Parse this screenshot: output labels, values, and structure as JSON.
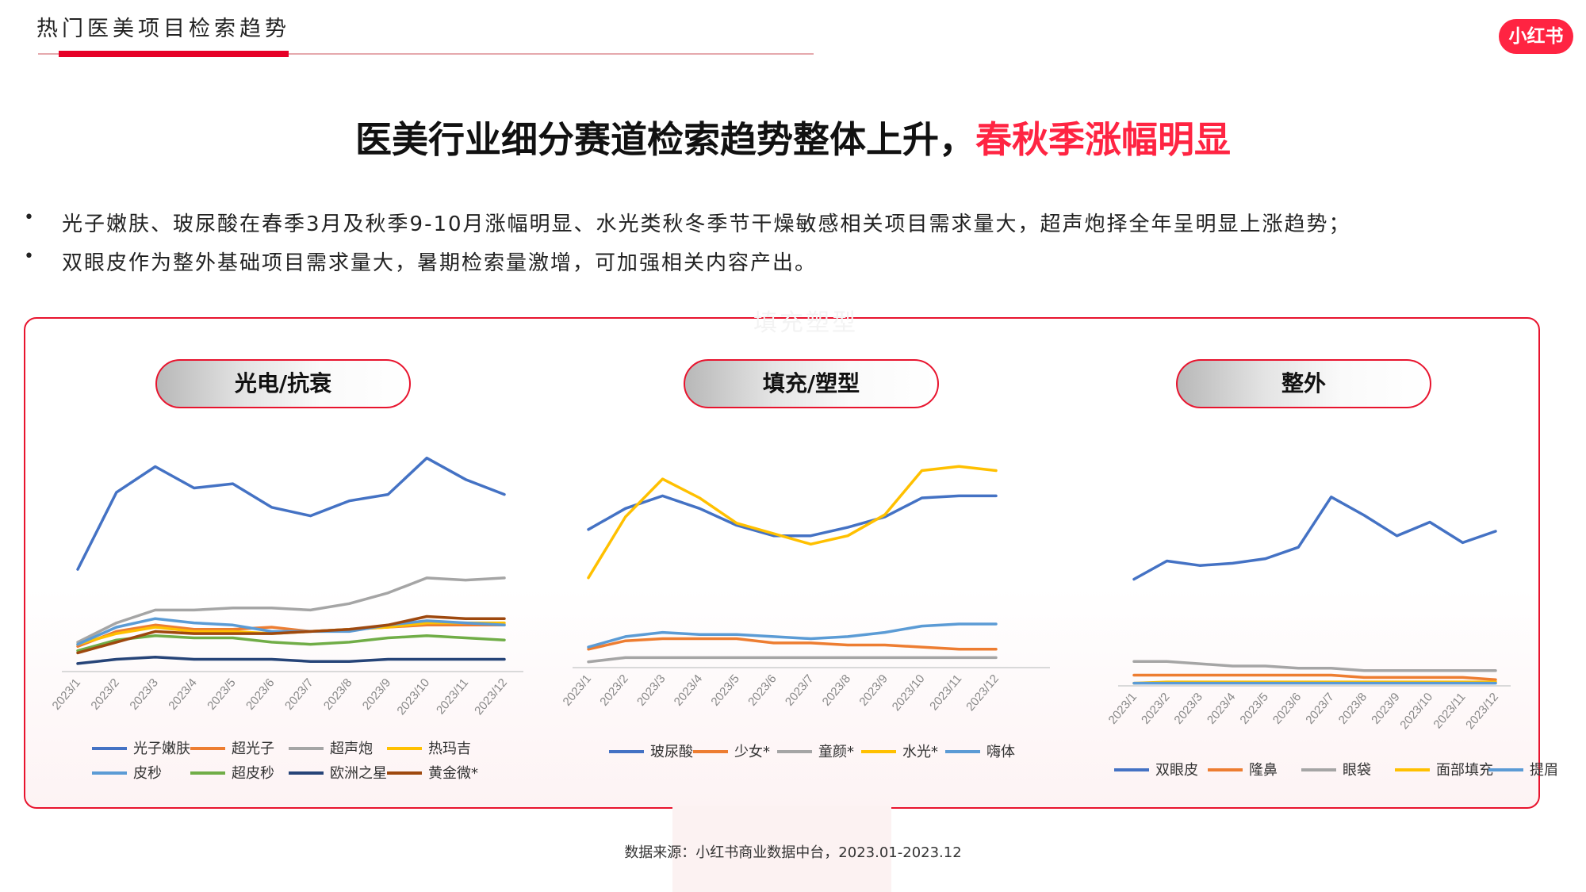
{
  "header": {
    "section_label": "热门医美项目检索趋势",
    "brand": "小红书"
  },
  "headline": {
    "main": "医美行业细分赛道检索趋势整体上升，",
    "highlight": "春秋季涨幅明显"
  },
  "bullets": [
    {
      "mark": "•",
      "text": "光子嫩肤、玻尿酸在春季3月及秋季9-10月涨幅明显、水光类秋冬季节干燥敏感相关项目需求量大，超声炮择全年呈明显上涨趋势；"
    },
    {
      "mark": "•",
      "text": "双眼皮作为整外基础项目需求量大，暑期检索量激增，可加强相关内容产出。"
    }
  ],
  "watermark": "填充塑型",
  "footer": {
    "source": "数据来源：小红书商业数据中台，2023.01-2023.12"
  },
  "colors": {
    "accent": "#ff2442",
    "line": "#e60027"
  },
  "chart_data": [
    {
      "type": "line",
      "title": "光电/抗衰",
      "categories": [
        "2023/1",
        "2023/2",
        "2023/3",
        "2023/4",
        "2023/5",
        "2023/6",
        "2023/7",
        "2023/8",
        "2023/9",
        "2023/10",
        "2023/11",
        "2023/12"
      ],
      "ylim": [
        0,
        100
      ],
      "series": [
        {
          "name": "光子嫩肤",
          "color": "#4472c4",
          "values": [
            47,
            83,
            95,
            85,
            87,
            76,
            72,
            79,
            82,
            99,
            89,
            82
          ]
        },
        {
          "name": "超光子",
          "color": "#ed7d31",
          "values": [
            11,
            18,
            21,
            19,
            19,
            20,
            18,
            19,
            20,
            21,
            21,
            21
          ]
        },
        {
          "name": "超声炮",
          "color": "#a5a5a5",
          "values": [
            13,
            22,
            28,
            28,
            29,
            29,
            28,
            31,
            36,
            43,
            42,
            43
          ]
        },
        {
          "name": "热玛吉",
          "color": "#ffc000",
          "values": [
            12,
            17,
            20,
            18,
            18,
            17,
            18,
            19,
            20,
            22,
            22,
            22
          ]
        },
        {
          "name": "皮秒",
          "color": "#5b9bd5",
          "values": [
            12,
            20,
            24,
            22,
            21,
            18,
            18,
            18,
            21,
            23,
            22,
            21
          ]
        },
        {
          "name": "超皮秒",
          "color": "#70ad47",
          "values": [
            9,
            14,
            16,
            15,
            15,
            13,
            12,
            13,
            15,
            16,
            15,
            14
          ]
        },
        {
          "name": "欧洲之星",
          "color": "#264478",
          "values": [
            3,
            5,
            6,
            5,
            5,
            5,
            4,
            4,
            5,
            5,
            5,
            5
          ]
        },
        {
          "name": "黄金微*",
          "color": "#9e480e",
          "values": [
            8,
            13,
            18,
            17,
            17,
            17,
            18,
            19,
            21,
            25,
            24,
            24
          ]
        }
      ]
    },
    {
      "type": "line",
      "title": "填充/塑型",
      "categories": [
        "2023/1",
        "2023/2",
        "2023/3",
        "2023/4",
        "2023/5",
        "2023/6",
        "2023/7",
        "2023/8",
        "2023/9",
        "2023/10",
        "2023/11",
        "2023/12"
      ],
      "ylim": [
        0,
        100
      ],
      "series": [
        {
          "name": "玻尿酸",
          "color": "#4472c4",
          "values": [
            65,
            75,
            81,
            75,
            67,
            62,
            62,
            66,
            71,
            80,
            81,
            81
          ]
        },
        {
          "name": "少女*",
          "color": "#ed7d31",
          "values": [
            8,
            12,
            13,
            13,
            13,
            11,
            11,
            10,
            10,
            9,
            8,
            8
          ]
        },
        {
          "name": "童颜*",
          "color": "#a5a5a5",
          "values": [
            2,
            4,
            4,
            4,
            4,
            4,
            4,
            4,
            4,
            4,
            4,
            4
          ]
        },
        {
          "name": "水光*",
          "color": "#ffc000",
          "values": [
            42,
            71,
            89,
            80,
            68,
            63,
            58,
            62,
            72,
            93,
            95,
            93
          ]
        },
        {
          "name": "嗨体",
          "color": "#5b9bd5",
          "values": [
            9,
            14,
            16,
            15,
            15,
            14,
            13,
            14,
            16,
            19,
            20,
            20
          ]
        }
      ]
    },
    {
      "type": "line",
      "title": "整外",
      "categories": [
        "2023/1",
        "2023/2",
        "2023/3",
        "2023/4",
        "2023/5",
        "2023/6",
        "2023/7",
        "2023/8",
        "2023/9",
        "2023/10",
        "2023/11",
        "2023/12"
      ],
      "ylim": [
        0,
        100
      ],
      "series": [
        {
          "name": "双眼皮",
          "color": "#4472c4",
          "values": [
            46,
            54,
            52,
            53,
            55,
            60,
            82,
            74,
            65,
            71,
            62,
            67
          ]
        },
        {
          "name": "隆鼻",
          "color": "#ed7d31",
          "values": [
            4,
            4,
            4,
            4,
            4,
            4,
            4,
            3,
            3,
            3,
            3,
            2
          ]
        },
        {
          "name": "眼袋",
          "color": "#a5a5a5",
          "values": [
            10,
            10,
            9,
            8,
            8,
            7,
            7,
            6,
            6,
            6,
            6,
            6
          ]
        },
        {
          "name": "面部填充",
          "color": "#ffc000",
          "values": [
            0.5,
            1,
            1,
            1,
            1,
            1,
            1,
            1,
            1,
            1,
            1,
            1
          ]
        },
        {
          "name": "提眉",
          "color": "#5b9bd5",
          "values": [
            0.5,
            0.5,
            0.5,
            0.5,
            0.5,
            0.5,
            0.5,
            0.5,
            0.5,
            0.5,
            0.5,
            0.5
          ]
        }
      ]
    }
  ]
}
